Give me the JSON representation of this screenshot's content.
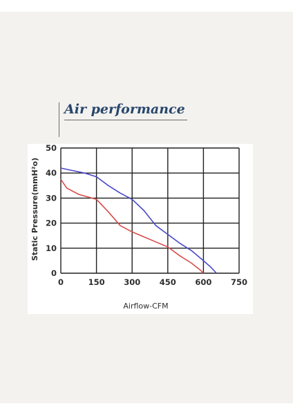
{
  "colors": {
    "title": "#27466c",
    "series_a": "#4a48c8",
    "series_b": "#d94b4b",
    "text": "#2f2f2f",
    "grid": "#1f1f1f"
  },
  "title": "Air performance",
  "chart_data": {
    "type": "line",
    "xlabel": "Airflow-CFM",
    "ylabel": "Static Pressure(mmH²o)",
    "xlim": [
      0,
      750
    ],
    "ylim": [
      0,
      50
    ],
    "x_ticks": [
      "0",
      "150",
      "300",
      "450",
      "600",
      "750"
    ],
    "y_ticks": [
      "0",
      "10",
      "20",
      "30",
      "40",
      "50"
    ],
    "grid": true,
    "series": [
      {
        "color": "#4a48c8",
        "points": [
          [
            0,
            42
          ],
          [
            50,
            41
          ],
          [
            100,
            40
          ],
          [
            150,
            38.5
          ],
          [
            200,
            35
          ],
          [
            250,
            32
          ],
          [
            300,
            29.5
          ],
          [
            350,
            25
          ],
          [
            400,
            19
          ],
          [
            450,
            15.5
          ],
          [
            500,
            12
          ],
          [
            550,
            9
          ],
          [
            600,
            5
          ],
          [
            630,
            2.5
          ],
          [
            655,
            0
          ]
        ]
      },
      {
        "color": "#d94b4b",
        "points": [
          [
            0,
            37.5
          ],
          [
            25,
            34
          ],
          [
            75,
            31.5
          ],
          [
            150,
            29.5
          ],
          [
            200,
            24.5
          ],
          [
            250,
            19
          ],
          [
            300,
            16.5
          ],
          [
            350,
            14.5
          ],
          [
            400,
            12.5
          ],
          [
            450,
            10.5
          ],
          [
            500,
            7
          ],
          [
            550,
            4
          ],
          [
            590,
            1
          ],
          [
            600,
            0
          ]
        ]
      }
    ]
  }
}
